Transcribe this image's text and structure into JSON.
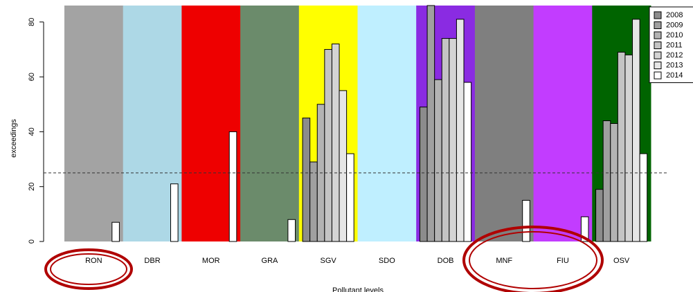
{
  "chart_data": {
    "type": "bar",
    "ylabel": "exceedings",
    "xlabel": "Pollutant levels",
    "categories": [
      "RON",
      "DBR",
      "MOR",
      "GRA",
      "SGV",
      "SDO",
      "DOB",
      "MNF",
      "FIU",
      "OSV"
    ],
    "category_colors": [
      "#a3a3a3",
      "#add8e6",
      "#ee0000",
      "#6b8b6b",
      "#ffff00",
      "#bfefff",
      "#8a2be2",
      "#7f7f7f",
      "#c23cff",
      "#006400"
    ],
    "series": [
      {
        "name": "2008",
        "color": "#8c8c8c",
        "values": [
          null,
          null,
          null,
          null,
          45,
          null,
          49,
          null,
          null,
          19
        ]
      },
      {
        "name": "2009",
        "color": "#a0a0a0",
        "values": [
          null,
          null,
          null,
          null,
          29,
          null,
          86,
          null,
          null,
          44
        ]
      },
      {
        "name": "2010",
        "color": "#b3b3b3",
        "values": [
          null,
          null,
          null,
          null,
          50,
          null,
          59,
          null,
          null,
          43
        ]
      },
      {
        "name": "2011",
        "color": "#c4c4c4",
        "values": [
          null,
          null,
          null,
          null,
          70,
          null,
          74,
          null,
          null,
          69
        ]
      },
      {
        "name": "2012",
        "color": "#d4d4d4",
        "values": [
          null,
          null,
          null,
          null,
          72,
          null,
          74,
          null,
          null,
          68
        ]
      },
      {
        "name": "2013",
        "color": "#e6e6e6",
        "values": [
          null,
          null,
          null,
          null,
          55,
          null,
          81,
          null,
          null,
          81
        ]
      },
      {
        "name": "2014",
        "color": "#ffffff",
        "values": [
          7,
          21,
          40,
          8,
          32,
          null,
          58,
          15,
          9,
          32
        ]
      }
    ],
    "threshold": 25,
    "ylim": [
      0,
      86
    ],
    "yticks": [
      0,
      20,
      40,
      60,
      80
    ],
    "legend": "top-right"
  }
}
